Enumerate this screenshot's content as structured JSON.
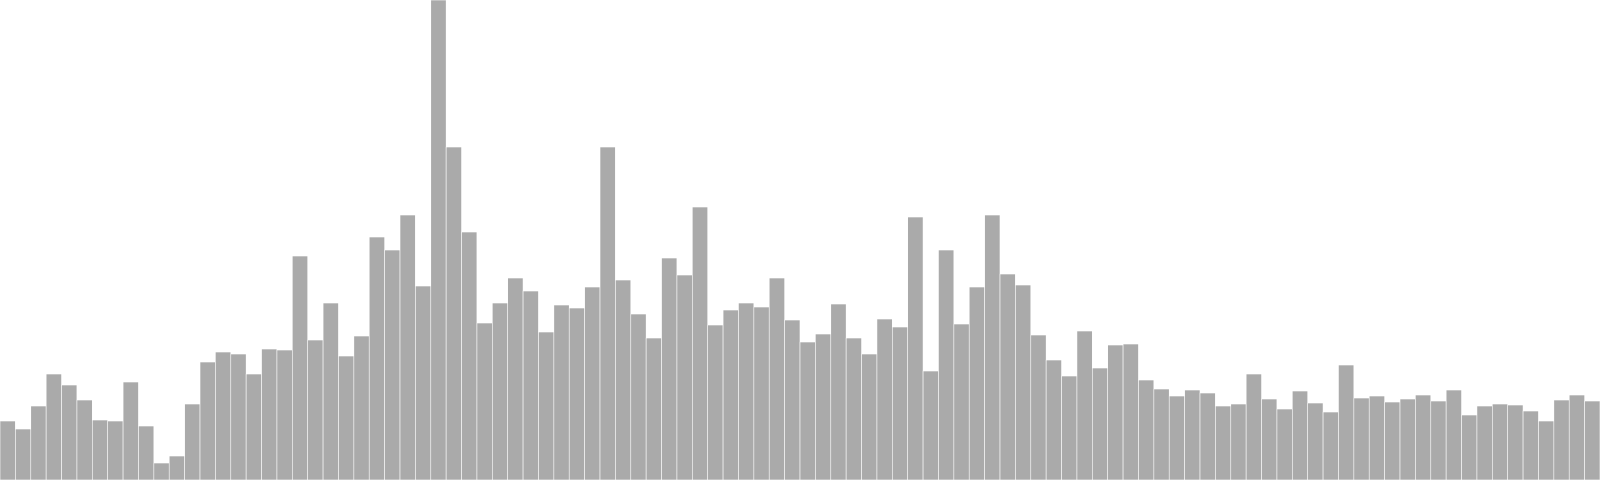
{
  "chart_data": {
    "type": "bar",
    "title": "",
    "xlabel": "",
    "ylabel": "",
    "ylim": [
      0,
      480
    ],
    "grid": false,
    "legend": "none",
    "bar_color": "#aaaaaa",
    "bar_edge_color": "#ffffff",
    "values": [
      59,
      51,
      74,
      106,
      95,
      80,
      60,
      59,
      98,
      54,
      17,
      24,
      76,
      118,
      128,
      126,
      106,
      131,
      130,
      224,
      140,
      177,
      124,
      144,
      243,
      230,
      265,
      194,
      480,
      333,
      248,
      157,
      177,
      202,
      189,
      148,
      175,
      172,
      193,
      333,
      200,
      166,
      142,
      222,
      205,
      273,
      155,
      170,
      177,
      173,
      202,
      160,
      138,
      146,
      176,
      142,
      126,
      161,
      153,
      263,
      109,
      230,
      156,
      193,
      265,
      206,
      195,
      145,
      120,
      104,
      149,
      112,
      135,
      136,
      100,
      91,
      84,
      90,
      87,
      74,
      76,
      106,
      81,
      71,
      89,
      77,
      68,
      115,
      82,
      84,
      78,
      81,
      85,
      79,
      90,
      65,
      74,
      76,
      75,
      69,
      59,
      80,
      85,
      79
    ]
  }
}
